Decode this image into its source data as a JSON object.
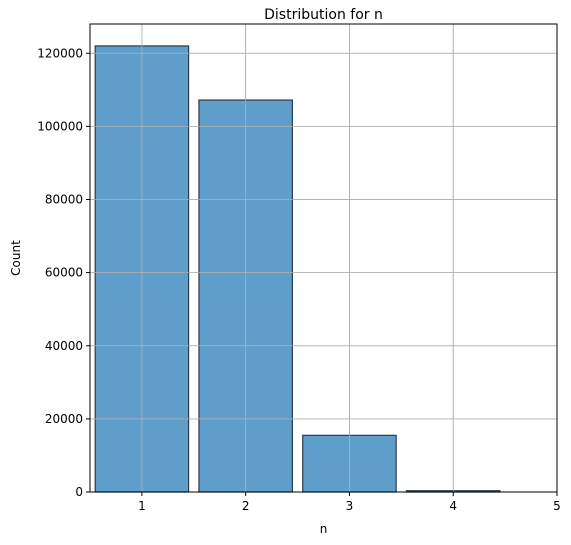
{
  "chart_data": {
    "type": "bar",
    "title": "Distribution for n",
    "xlabel": "n",
    "ylabel": "Count",
    "categories": [
      "1",
      "2",
      "3",
      "4"
    ],
    "x": [
      1,
      2,
      3,
      4
    ],
    "values": [
      122000,
      107200,
      15500,
      350
    ],
    "xlim": [
      0.5,
      5
    ],
    "ylim": [
      0,
      128000
    ],
    "xticks": [
      1,
      2,
      3,
      4,
      5
    ],
    "yticks": [
      0,
      20000,
      40000,
      60000,
      80000,
      100000,
      120000
    ],
    "xtick_labels": [
      "1",
      "2",
      "3",
      "4",
      "5"
    ],
    "ytick_labels": [
      "0",
      "20000",
      "40000",
      "60000",
      "80000",
      "100000",
      "120000"
    ],
    "grid": true,
    "bar_color": "#5f9ecb",
    "bar_edge_color": "#2a3b4a",
    "grid_color": "#b0b0b0"
  }
}
